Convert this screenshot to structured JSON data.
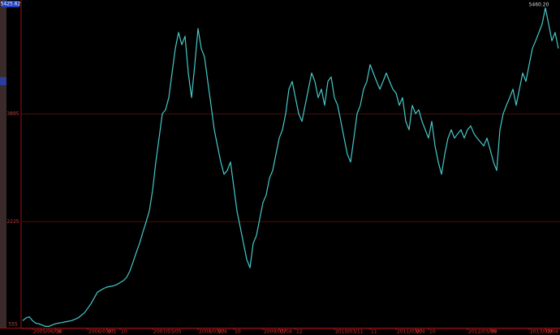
{
  "chart_data": {
    "type": "line",
    "annotations": [
      "5425.62",
      "5460.20"
    ],
    "series": [
      {
        "color": "#46c9c9",
        "values": [
          690,
          730,
          750,
          690,
          650,
          640,
          620,
          600,
          600,
          620,
          640,
          650,
          660,
          670,
          680,
          690,
          710,
          730,
          770,
          810,
          880,
          950,
          1040,
          1130,
          1160,
          1190,
          1210,
          1220,
          1230,
          1250,
          1280,
          1310,
          1360,
          1460,
          1600,
          1750,
          1890,
          2060,
          2220,
          2390,
          2710,
          3150,
          3520,
          3900,
          3960,
          4150,
          4530,
          4910,
          5160,
          4970,
          5100,
          4530,
          4150,
          4660,
          5220,
          4910,
          4780,
          4400,
          4030,
          3650,
          3400,
          3150,
          2960,
          3020,
          3150,
          2770,
          2390,
          2140,
          1890,
          1640,
          1510,
          1890,
          2010,
          2270,
          2520,
          2640,
          2900,
          3020,
          3270,
          3520,
          3650,
          3900,
          4280,
          4400,
          4150,
          3900,
          3780,
          4030,
          4280,
          4530,
          4400,
          4150,
          4280,
          4030,
          4400,
          4470,
          4150,
          4030,
          3780,
          3520,
          3270,
          3150,
          3520,
          3900,
          4030,
          4280,
          4400,
          4660,
          4530,
          4400,
          4280,
          4400,
          4530,
          4400,
          4280,
          4220,
          4030,
          4150,
          3780,
          3650,
          4030,
          3900,
          3960,
          3780,
          3650,
          3520,
          3780,
          3400,
          3150,
          2960,
          3270,
          3520,
          3650,
          3520,
          3590,
          3650,
          3520,
          3650,
          3710,
          3590,
          3520,
          3460,
          3400,
          3520,
          3340,
          3150,
          3020,
          3650,
          3900,
          4030,
          4150,
          4280,
          4030,
          4280,
          4530,
          4400,
          4660,
          4910,
          5030,
          5160,
          5290,
          5540,
          5290,
          5030,
          5160,
          4910
        ]
      }
    ],
    "ylim": [
      555,
      5600
    ],
    "yticks": [
      555,
      2225,
      3895
    ],
    "xlim": [
      0,
      165
    ],
    "xticks": [
      {
        "value": 3,
        "label": "2005/06/06"
      },
      {
        "value": 10,
        "label": "10"
      },
      {
        "value": 20,
        "label": "2006/03/01"
      },
      {
        "value": 26,
        "label": "07"
      },
      {
        "value": 30,
        "label": "10"
      },
      {
        "value": 40,
        "label": "2007/03/05"
      },
      {
        "value": 54,
        "label": "2008/03/04"
      },
      {
        "value": 60,
        "label": "07"
      },
      {
        "value": 65,
        "label": "10"
      },
      {
        "value": 74,
        "label": "2009/03/04"
      },
      {
        "value": 79,
        "label": "07"
      },
      {
        "value": 84,
        "label": "12"
      },
      {
        "value": 96,
        "label": "2010/03/11"
      },
      {
        "value": 107,
        "label": "11"
      },
      {
        "value": 115,
        "label": "2011/03/04"
      },
      {
        "value": 121,
        "label": "07"
      },
      {
        "value": 125,
        "label": "10"
      },
      {
        "value": 137,
        "label": "2012/03/06"
      },
      {
        "value": 144,
        "label": "09"
      },
      {
        "value": 156,
        "label": "2013/03/04"
      },
      {
        "value": 161,
        "label": "09"
      }
    ],
    "grid": true
  }
}
